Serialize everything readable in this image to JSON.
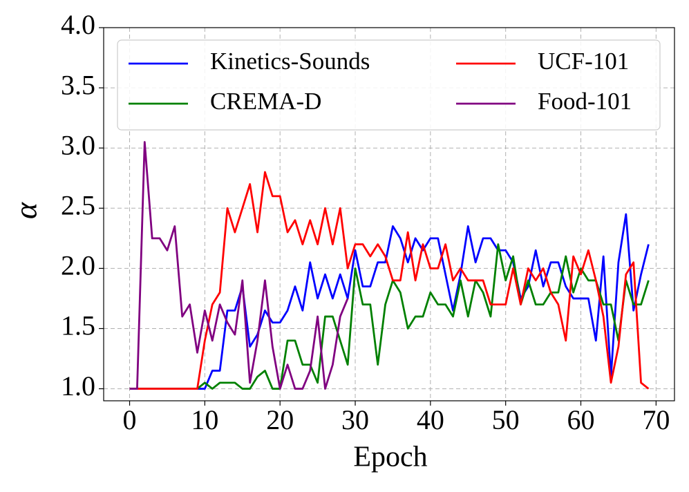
{
  "chart_data": {
    "type": "line",
    "xlabel": "Epoch",
    "ylabel": "α",
    "x": [
      0,
      1,
      2,
      3,
      4,
      5,
      6,
      7,
      8,
      9,
      10,
      11,
      12,
      13,
      14,
      15,
      16,
      17,
      18,
      19,
      20,
      21,
      22,
      23,
      24,
      25,
      26,
      27,
      28,
      29,
      30,
      31,
      32,
      33,
      34,
      35,
      36,
      37,
      38,
      39,
      40,
      41,
      42,
      43,
      44,
      45,
      46,
      47,
      48,
      49,
      50,
      51,
      52,
      53,
      54,
      55,
      56,
      57,
      58,
      59,
      60,
      61,
      62,
      63,
      64,
      65,
      66,
      67,
      68,
      69
    ],
    "series": [
      {
        "name": "Kinetics-Sounds",
        "color": "#0000ff",
        "values": [
          1.0,
          1.0,
          1.0,
          1.0,
          1.0,
          1.0,
          1.0,
          1.0,
          1.0,
          1.0,
          1.0,
          1.15,
          1.15,
          1.65,
          1.65,
          1.85,
          1.35,
          1.45,
          1.65,
          1.55,
          1.55,
          1.65,
          1.85,
          1.65,
          2.05,
          1.75,
          1.95,
          1.75,
          1.95,
          1.75,
          2.15,
          1.85,
          1.85,
          2.05,
          2.05,
          2.35,
          2.25,
          2.05,
          2.25,
          2.15,
          2.25,
          2.25,
          1.95,
          1.65,
          1.95,
          2.35,
          2.05,
          2.25,
          2.25,
          2.15,
          2.15,
          2.05,
          1.75,
          1.85,
          2.15,
          1.85,
          2.05,
          2.05,
          1.85,
          1.75,
          1.75,
          1.75,
          1.4,
          2.1,
          1.1,
          2.05,
          2.45,
          1.65,
          1.95,
          2.2
        ]
      },
      {
        "name": "CREMA-D",
        "color": "#008000",
        "values": [
          1.0,
          1.0,
          1.0,
          1.0,
          1.0,
          1.0,
          1.0,
          1.0,
          1.0,
          1.0,
          1.05,
          1.0,
          1.05,
          1.05,
          1.05,
          1.0,
          1.0,
          1.1,
          1.15,
          1.0,
          1.0,
          1.4,
          1.4,
          1.2,
          1.2,
          1.05,
          1.6,
          1.6,
          1.4,
          1.2,
          2.0,
          1.7,
          1.7,
          1.2,
          1.7,
          1.9,
          1.8,
          1.5,
          1.6,
          1.6,
          1.8,
          1.7,
          1.7,
          1.6,
          1.9,
          1.6,
          1.9,
          1.8,
          1.6,
          2.2,
          1.9,
          2.1,
          1.7,
          1.9,
          1.7,
          1.7,
          1.8,
          1.8,
          2.1,
          1.8,
          2.0,
          1.9,
          1.9,
          1.7,
          1.7,
          1.4,
          1.9,
          1.7,
          1.7,
          1.9
        ]
      },
      {
        "name": "UCF-101",
        "color": "#ff0000",
        "values": [
          1.0,
          1.0,
          1.0,
          1.0,
          1.0,
          1.0,
          1.0,
          1.0,
          1.0,
          1.0,
          1.4,
          1.7,
          1.8,
          2.5,
          2.3,
          2.5,
          2.7,
          2.3,
          2.8,
          2.6,
          2.6,
          2.3,
          2.4,
          2.2,
          2.4,
          2.2,
          2.5,
          2.2,
          2.5,
          2.0,
          2.2,
          2.2,
          2.1,
          2.2,
          2.1,
          1.9,
          1.9,
          2.3,
          1.9,
          2.2,
          2.0,
          2.0,
          2.2,
          1.9,
          2.0,
          1.9,
          1.9,
          1.9,
          1.7,
          1.7,
          1.7,
          2.0,
          1.7,
          2.0,
          1.9,
          2.0,
          1.8,
          1.7,
          1.4,
          2.1,
          1.95,
          2.15,
          1.9,
          1.6,
          1.05,
          1.35,
          1.95,
          2.05,
          1.05,
          1.0
        ]
      },
      {
        "name": "Food-101",
        "color": "#800080",
        "values": [
          1.0,
          1.0,
          3.05,
          2.25,
          2.25,
          2.15,
          2.35,
          1.6,
          1.7,
          1.3,
          1.65,
          1.4,
          1.7,
          1.55,
          1.45,
          1.9,
          1.05,
          1.4,
          1.9,
          1.35,
          1.0,
          1.2,
          1.0,
          1.0,
          1.15,
          1.6,
          1.0,
          1.2,
          1.6,
          1.75,
          null,
          null,
          null,
          null,
          null,
          null,
          null,
          null,
          null,
          null,
          null,
          null,
          null,
          null,
          null,
          null,
          null,
          null,
          null,
          null,
          null,
          null,
          null,
          null,
          null,
          null,
          null,
          null,
          null,
          null,
          null,
          null,
          null,
          null,
          null,
          null,
          null,
          null,
          null,
          null
        ]
      }
    ],
    "xlim": [
      -3.45,
      72.45
    ],
    "xticks": [
      0,
      10,
      20,
      30,
      40,
      50,
      60,
      70
    ],
    "ylim": [
      0.9,
      4.0
    ],
    "yticks": [
      {
        "value": 1.0,
        "label": "1.0"
      },
      1.5,
      {
        "value": 2.0,
        "label": "2.0"
      },
      2.5,
      {
        "value": 3.0,
        "label": "3.0"
      },
      3.5,
      {
        "value": 4.0,
        "label": "4.0"
      }
    ],
    "grid": true,
    "legend": "upper center",
    "legend_ncol": 2
  }
}
